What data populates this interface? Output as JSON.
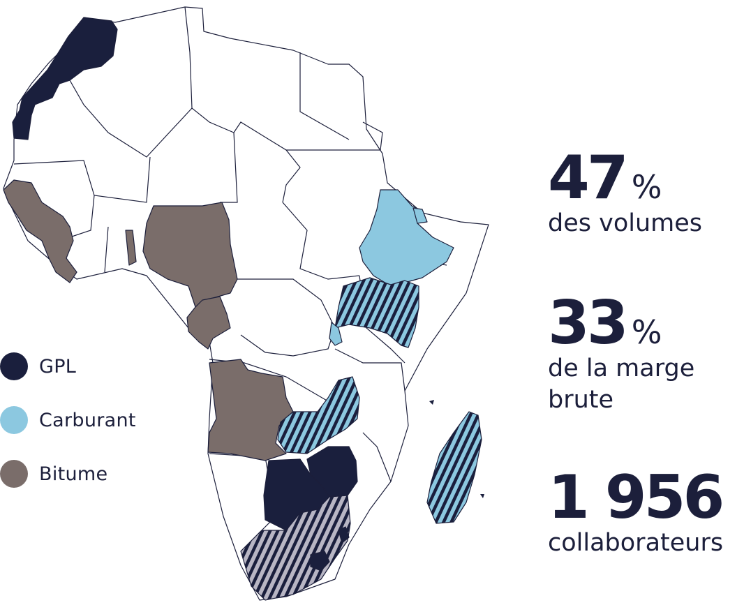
{
  "legend": [
    {
      "label": "GPL",
      "color": "#1a1f3d"
    },
    {
      "label": "Carburant",
      "color": "#8cc8e0"
    },
    {
      "label": "Bitume",
      "color": "#7a6d6a"
    }
  ],
  "stats": [
    {
      "value": "47",
      "unit": "%",
      "label_lines": [
        "des volumes"
      ]
    },
    {
      "value": "33",
      "unit": "%",
      "label_lines": [
        "de la marge",
        "brute"
      ]
    },
    {
      "value": "1 956",
      "unit": "",
      "label_lines": [
        "collaborateurs"
      ]
    }
  ],
  "colors": {
    "text": "#1c1f3b",
    "outline": "#1c1f3b",
    "other_countries": "#ffffff",
    "stripe_dark": "#1a1f3d",
    "stripe_grey": "#b8b6c4"
  },
  "regions": {
    "morocco": "GPL",
    "west_africa_coast": "Bitume",
    "nigeria_ghana": "Bitume",
    "cameroon_congo": "Bitume",
    "angola": "Bitume",
    "ethiopia": "Carburant",
    "djibouti": "Carburant",
    "burundi": "Carburant",
    "kenya_uganda": "Carburant + GPL",
    "zambia_malawi": "Carburant + GPL",
    "madagascar": "Carburant + GPL",
    "botswana": "GPL",
    "zimbabwe": "GPL",
    "south_africa": "GPL + stripes",
    "lesotho": "GPL",
    "eswatini": "GPL"
  }
}
